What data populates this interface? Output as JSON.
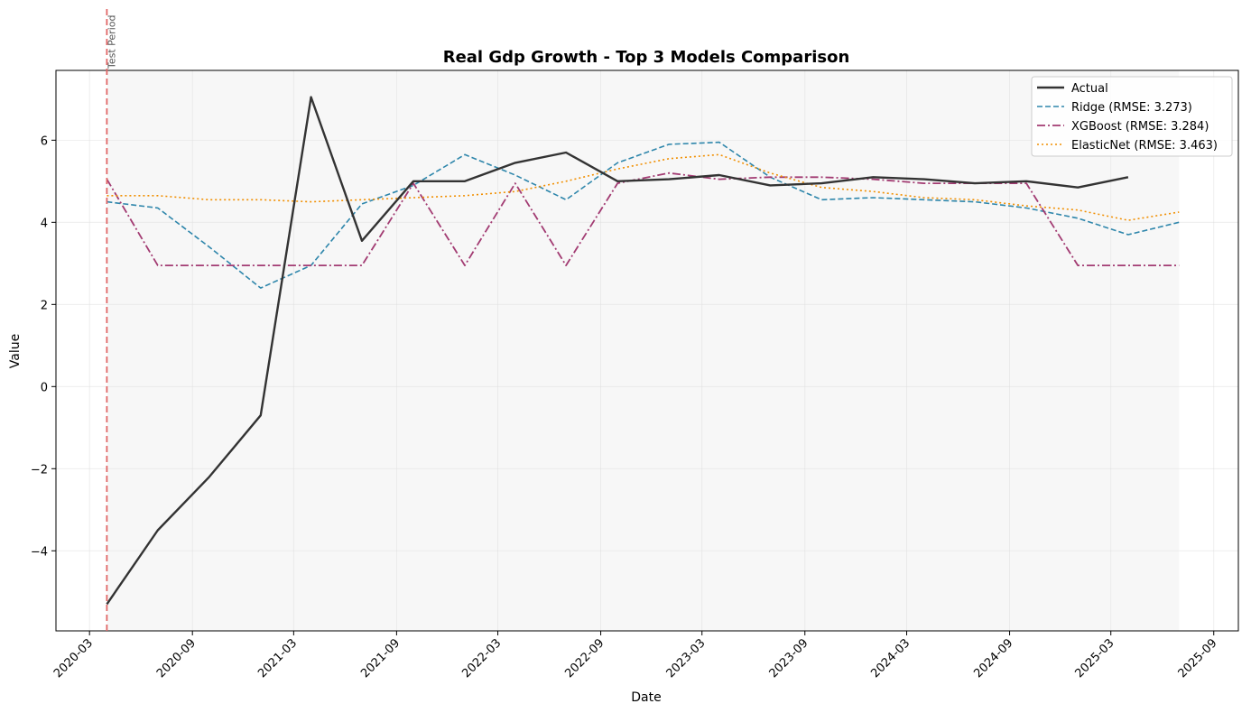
{
  "chart_data": {
    "type": "line",
    "title": "Real Gdp Growth - Top 3 Models Comparison",
    "xlabel": "Date",
    "ylabel": "Value",
    "xlim": [
      "2020-01-01",
      "2025-10-15"
    ],
    "ylim": [
      -5.95,
      7.7
    ],
    "grid": true,
    "legend_position": "top-right",
    "x_tick_labels": [
      "2020-03",
      "2020-09",
      "2021-03",
      "2021-09",
      "2022-03",
      "2022-09",
      "2023-03",
      "2023-09",
      "2024-03",
      "2024-09",
      "2025-03",
      "2025-09"
    ],
    "y_tick_labels": [
      "−4",
      "−2",
      "0",
      "2",
      "4",
      "6"
    ],
    "y_tick_values": [
      -4,
      -2,
      0,
      2,
      4,
      6
    ],
    "annotation": {
      "text": "Test Period",
      "x": "2020-04-01",
      "color": "#e06666"
    },
    "shaded_region": {
      "from": "2020-04-01",
      "to": "2025-07-01",
      "color": "#f0f0f0"
    },
    "x": [
      "2020-04-01",
      "2020-07-01",
      "2020-10-01",
      "2021-01-01",
      "2021-04-01",
      "2021-07-01",
      "2021-10-01",
      "2022-01-01",
      "2022-04-01",
      "2022-07-01",
      "2022-10-01",
      "2023-01-01",
      "2023-04-01",
      "2023-07-01",
      "2023-10-01",
      "2024-01-01",
      "2024-04-01",
      "2024-07-01",
      "2024-10-01",
      "2025-01-01",
      "2025-04-01",
      "2025-07-01"
    ],
    "series": [
      {
        "name": "Actual",
        "color": "#333333",
        "dash": "solid",
        "values": [
          -5.3,
          -3.5,
          -2.2,
          -0.7,
          7.05,
          3.55,
          5.0,
          5.0,
          5.45,
          5.7,
          5.0,
          5.05,
          5.15,
          4.9,
          4.95,
          5.1,
          5.05,
          4.95,
          5.0,
          4.85,
          5.1,
          null
        ]
      },
      {
        "name": "Ridge (RMSE: 3.273)",
        "color": "#2e86ab",
        "dash": "dashed",
        "values": [
          4.5,
          4.35,
          3.4,
          2.4,
          2.95,
          4.45,
          4.9,
          5.65,
          5.15,
          4.55,
          5.45,
          5.9,
          5.95,
          5.1,
          4.55,
          4.6,
          4.55,
          4.5,
          4.35,
          4.1,
          3.7,
          4.0
        ]
      },
      {
        "name": "XGBoost (RMSE: 3.284)",
        "color": "#a23b72",
        "dash": "dashdot",
        "values": [
          5.05,
          2.95,
          2.95,
          2.95,
          2.95,
          2.95,
          4.95,
          2.95,
          4.95,
          2.95,
          4.95,
          5.2,
          5.05,
          5.1,
          5.1,
          5.05,
          4.95,
          4.95,
          4.95,
          2.95,
          2.95,
          2.95
        ]
      },
      {
        "name": "ElasticNet (RMSE: 3.463)",
        "color": "#f18f01",
        "dash": "dotted",
        "values": [
          4.65,
          4.65,
          4.55,
          4.55,
          4.5,
          4.55,
          4.6,
          4.65,
          4.75,
          5.0,
          5.3,
          5.55,
          5.65,
          5.2,
          4.85,
          4.75,
          4.6,
          4.55,
          4.4,
          4.3,
          4.05,
          4.25
        ]
      }
    ]
  }
}
